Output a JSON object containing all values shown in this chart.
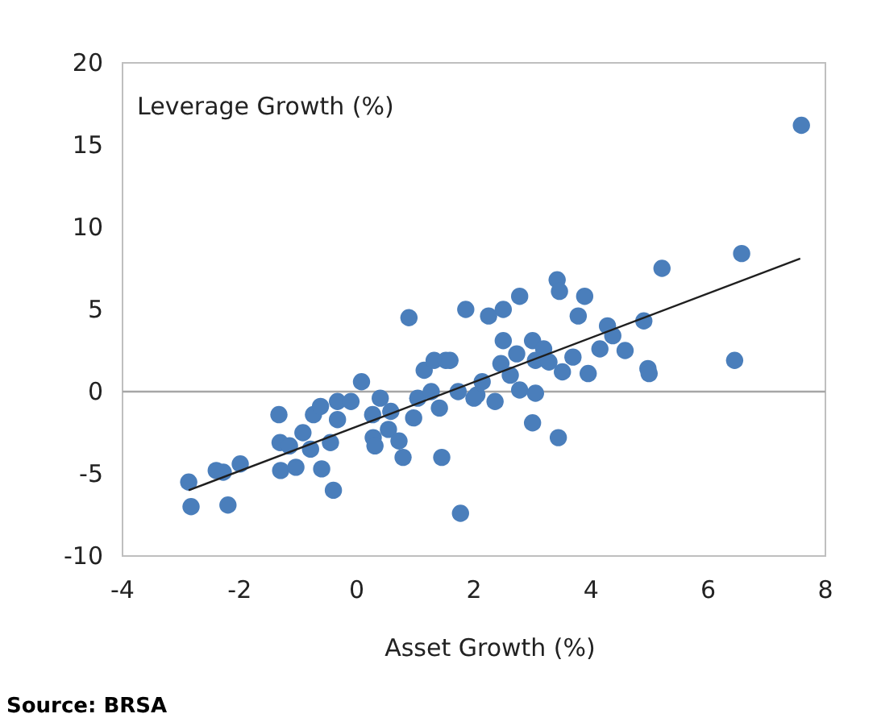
{
  "chart_data": {
    "type": "scatter",
    "ylabel": "Leverage Growth (%)",
    "xlabel": "Asset Growth (%)",
    "annotations": [
      "Source: BRSA"
    ],
    "xlim": [
      -4,
      8
    ],
    "xticks": [
      -4,
      -2,
      0,
      2,
      4,
      6,
      8
    ],
    "ylim": [
      -10,
      20
    ],
    "yticks": [
      -10,
      -5,
      0,
      5,
      10,
      15,
      20
    ],
    "grid": false,
    "ref_lines": [
      {
        "axis": "y",
        "value": 0,
        "color": "#a6a6a6"
      }
    ],
    "series": [
      {
        "marker": "circle",
        "color": "#4a7ebb",
        "x": [
          -2.87,
          -2.83,
          -2.4,
          -2.28,
          -2.2,
          -1.99,
          -1.33,
          -1.31,
          -1.3,
          -1.15,
          -1.04,
          -0.92,
          -0.79,
          -0.74,
          -0.62,
          -0.6,
          -0.45,
          -0.4,
          -0.33,
          -0.33,
          -0.1,
          0.08,
          0.27,
          0.28,
          0.31,
          0.4,
          0.54,
          0.58,
          0.72,
          0.79,
          0.89,
          0.97,
          1.04,
          1.15,
          1.32,
          1.45,
          1.52,
          1.41,
          1.77,
          1.86,
          2.05,
          1.27,
          1.59,
          2.25,
          2.5,
          2.78,
          2.5,
          3.0,
          3.42,
          3.46,
          3.89,
          3.78,
          4.28,
          4.37,
          4.9,
          4.58,
          4.97,
          4.99,
          5.21,
          6.45,
          6.57,
          3.95,
          3.51,
          3.0,
          3.44,
          2.36,
          2.0,
          2.46,
          2.73,
          3.05,
          3.28,
          3.69,
          4.15,
          2.78,
          3.05,
          2.14,
          1.73,
          3.19,
          2.62,
          7.59
        ],
        "values": [
          -5.5,
          -7.0,
          -4.8,
          -4.9,
          -6.9,
          -4.4,
          -1.4,
          -3.1,
          -4.8,
          -3.3,
          -4.6,
          -2.5,
          -3.5,
          -1.4,
          -0.9,
          -4.7,
          -3.1,
          -6.0,
          -1.7,
          -0.6,
          -0.6,
          0.6,
          -1.4,
          -2.8,
          -3.3,
          -0.4,
          -2.3,
          -1.2,
          -3.0,
          -4.0,
          4.5,
          -1.6,
          -0.4,
          1.3,
          1.9,
          -4.0,
          1.9,
          -1.0,
          -7.4,
          5.0,
          -0.2,
          0.0,
          1.9,
          4.6,
          5.0,
          5.8,
          3.1,
          3.1,
          6.8,
          6.1,
          5.8,
          4.6,
          4.0,
          3.4,
          4.3,
          2.5,
          1.4,
          1.1,
          7.5,
          1.9,
          8.4,
          1.1,
          1.2,
          -1.9,
          -2.8,
          -0.6,
          -0.4,
          1.7,
          2.3,
          1.9,
          1.8,
          2.1,
          2.6,
          0.1,
          -0.1,
          0.6,
          0.0,
          2.6,
          1.0,
          16.2
        ]
      },
      {
        "type": "line",
        "color": "#1f1f1f",
        "x": [
          -2.87,
          7.57
        ],
        "values": [
          -6.0,
          8.1
        ]
      }
    ]
  }
}
